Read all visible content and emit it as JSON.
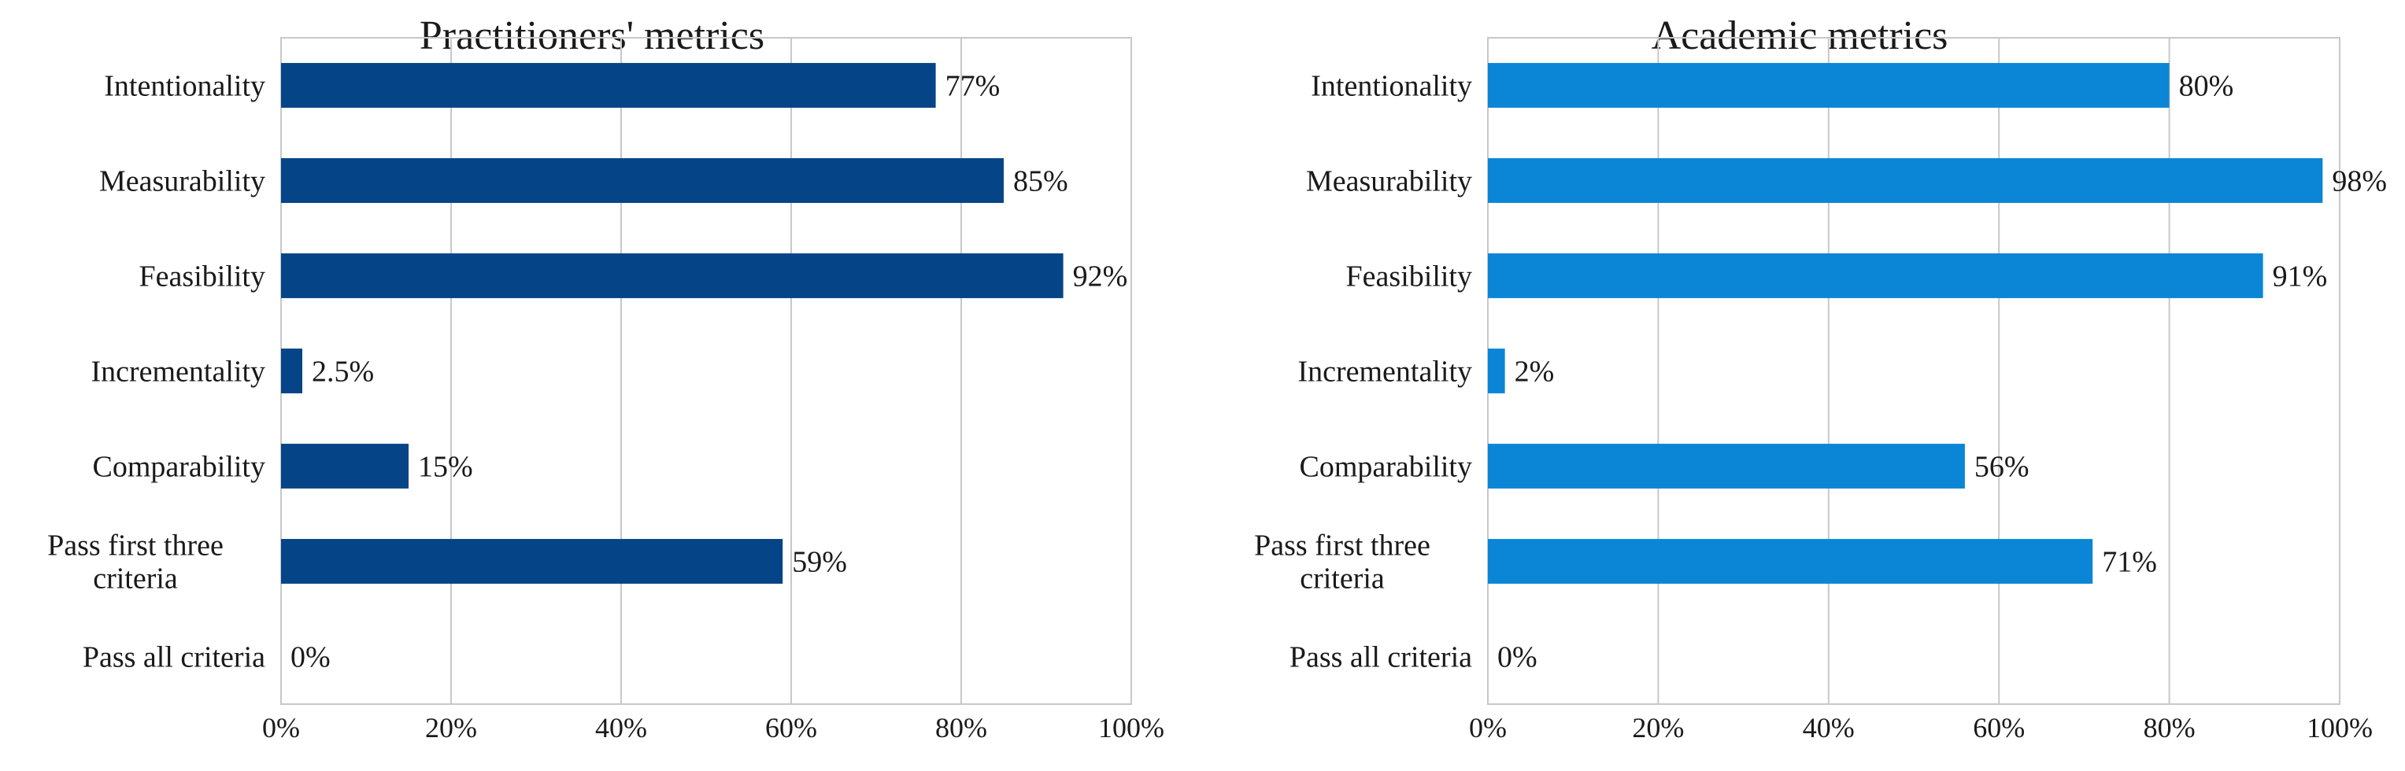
{
  "chart_data": [
    {
      "type": "bar",
      "orientation": "horizontal",
      "title": "Practitioners' metrics",
      "categories": [
        "Intentionality",
        "Measurability",
        "Feasibility",
        "Incrementality",
        "Comparability",
        "Pass first three criteria",
        "Pass all criteria"
      ],
      "values": [
        77,
        85,
        92,
        2.5,
        15,
        59,
        0
      ],
      "value_labels": [
        "77%",
        "85%",
        "92%",
        "2.5%",
        "15%",
        "59%",
        "0%"
      ],
      "xlim": [
        0,
        100
      ],
      "xticks": [
        "0%",
        "20%",
        "40%",
        "60%",
        "80%",
        "100%"
      ],
      "grid": true,
      "color": "#054487"
    },
    {
      "type": "bar",
      "orientation": "horizontal",
      "title": "Academic metrics",
      "categories": [
        "Intentionality",
        "Measurability",
        "Feasibility",
        "Incrementality",
        "Comparability",
        "Pass first three criteria",
        "Pass all criteria"
      ],
      "values": [
        80,
        98,
        91,
        2,
        56,
        71,
        0
      ],
      "value_labels": [
        "80%",
        "98%",
        "91%",
        "2%",
        "56%",
        "71%",
        "0%"
      ],
      "xlim": [
        0,
        100
      ],
      "xticks": [
        "0%",
        "20%",
        "40%",
        "60%",
        "80%",
        "100%"
      ],
      "grid": true,
      "color": "#0b86d6"
    }
  ]
}
